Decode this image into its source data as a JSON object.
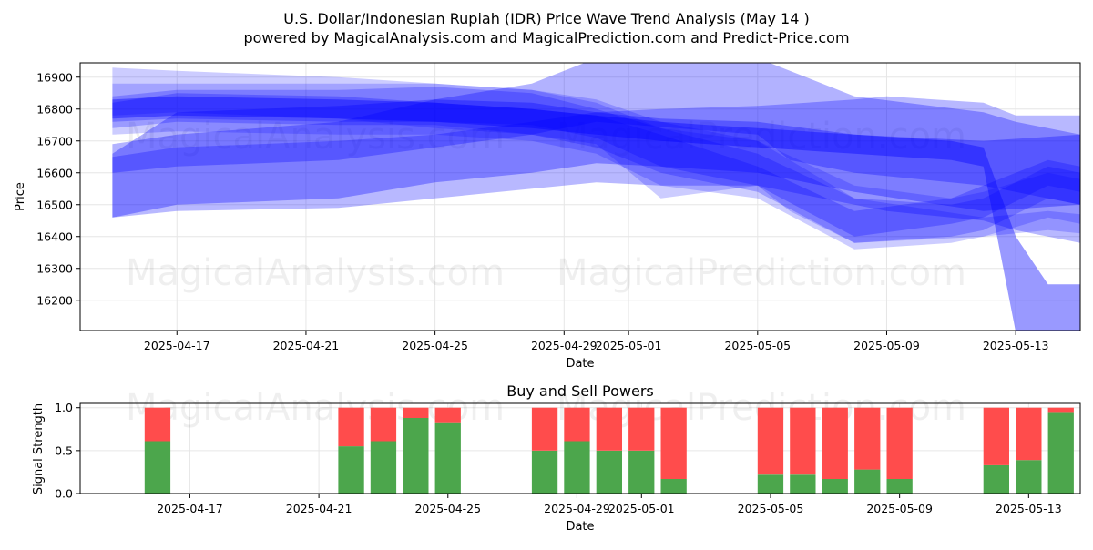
{
  "title_line1": "U.S. Dollar/Indonesian Rupiah (IDR) Price Wave Trend Analysis (May 14 )",
  "title_line2": "powered by MagicalAnalysis.com and MagicalPrediction.com and Predict-Price.com",
  "watermarks": [
    "MagicalAnalysis.com",
    "MagicalPrediction.com"
  ],
  "colors": {
    "wave": "#0000ff",
    "buy": "#4ca64c",
    "sell": "#ff4c4c",
    "grid": "#e6e6e6"
  },
  "chart_data": [
    {
      "type": "area",
      "xlabel": "Date",
      "ylabel": "Price",
      "xlim": [
        "2025-04-14",
        "2025-05-15"
      ],
      "ylim": [
        16105,
        16945
      ],
      "x_ticks": [
        "2025-04-17",
        "2025-04-21",
        "2025-04-25",
        "2025-04-29",
        "2025-05-01",
        "2025-05-05",
        "2025-05-09",
        "2025-05-13"
      ],
      "y_ticks": [
        16200,
        16300,
        16400,
        16500,
        16600,
        16700,
        16800,
        16900
      ],
      "grid": true,
      "bands": [
        {
          "x": [
            "2025-04-15",
            "2025-04-17",
            "2025-04-22",
            "2025-04-25",
            "2025-04-28",
            "2025-04-30",
            "2025-05-02",
            "2025-05-05",
            "2025-05-08",
            "2025-05-12",
            "2025-05-15"
          ],
          "upper": [
            16660,
            16790,
            16810,
            16830,
            16820,
            16790,
            16770,
            16760,
            16720,
            16700,
            16720
          ],
          "lower": [
            16460,
            16500,
            16520,
            16570,
            16600,
            16630,
            16620,
            16600,
            16540,
            16480,
            16500
          ]
        },
        {
          "x": [
            "2025-04-15",
            "2025-04-17",
            "2025-04-22",
            "2025-04-25",
            "2025-04-28",
            "2025-04-30",
            "2025-05-02",
            "2025-05-05",
            "2025-05-08",
            "2025-05-11",
            "2025-05-12",
            "2025-05-14",
            "2025-05-15"
          ],
          "upper": [
            16820,
            16850,
            16840,
            16820,
            16800,
            16780,
            16720,
            16620,
            16480,
            16520,
            16560,
            16640,
            16620
          ],
          "lower": [
            16760,
            16770,
            16760,
            16760,
            16750,
            16710,
            16620,
            16560,
            16400,
            16440,
            16460,
            16560,
            16540
          ]
        },
        {
          "x": [
            "2025-04-15",
            "2025-04-17",
            "2025-04-22",
            "2025-04-25",
            "2025-04-28",
            "2025-04-30",
            "2025-05-02",
            "2025-05-05",
            "2025-05-08",
            "2025-05-11",
            "2025-05-12",
            "2025-05-14",
            "2025-05-15"
          ],
          "upper": [
            16840,
            16860,
            16860,
            16870,
            16850,
            16800,
            16740,
            16660,
            16520,
            16500,
            16520,
            16620,
            16600
          ],
          "lower": [
            16740,
            16760,
            16750,
            16750,
            16720,
            16680,
            16600,
            16540,
            16380,
            16400,
            16420,
            16520,
            16500
          ]
        },
        {
          "x": [
            "2025-04-15",
            "2025-04-17",
            "2025-04-22",
            "2025-04-25",
            "2025-04-28",
            "2025-04-30",
            "2025-05-02",
            "2025-05-05",
            "2025-05-08",
            "2025-05-11",
            "2025-05-12",
            "2025-05-14",
            "2025-05-15"
          ],
          "upper": [
            16880,
            16880,
            16880,
            16880,
            16860,
            16830,
            16760,
            16700,
            16560,
            16520,
            16540,
            16600,
            16580
          ],
          "lower": [
            16720,
            16730,
            16720,
            16720,
            16700,
            16660,
            16560,
            16520,
            16360,
            16380,
            16400,
            16460,
            16440
          ]
        },
        {
          "x": [
            "2025-04-15",
            "2025-04-17",
            "2025-04-22",
            "2025-04-25",
            "2025-04-28",
            "2025-04-30",
            "2025-05-02",
            "2025-05-05",
            "2025-05-06",
            "2025-05-08",
            "2025-05-12",
            "2025-05-14",
            "2025-05-15"
          ],
          "upper": [
            16930,
            16920,
            16900,
            16880,
            16860,
            16820,
            16740,
            16700,
            16640,
            16520,
            16460,
            16480,
            16470
          ],
          "lower": [
            16780,
            16790,
            16770,
            16740,
            16720,
            16690,
            16520,
            16560,
            16480,
            16380,
            16400,
            16420,
            16410
          ]
        },
        {
          "x": [
            "2025-04-15",
            "2025-04-17",
            "2025-04-22",
            "2025-04-25",
            "2025-04-28",
            "2025-04-30",
            "2025-05-02",
            "2025-05-05",
            "2025-05-08",
            "2025-05-09",
            "2025-05-12",
            "2025-05-13",
            "2025-05-14",
            "2025-05-15"
          ],
          "upper": [
            16650,
            16680,
            16700,
            16720,
            16760,
            16790,
            16800,
            16810,
            16830,
            16840,
            16820,
            16780,
            16780,
            16780
          ],
          "lower": [
            16460,
            16480,
            16490,
            16520,
            16550,
            16570,
            16560,
            16560,
            16500,
            16480,
            16450,
            16420,
            16400,
            16380
          ]
        },
        {
          "x": [
            "2025-04-15",
            "2025-04-17",
            "2025-04-22",
            "2025-04-25",
            "2025-04-28",
            "2025-04-29",
            "2025-04-30",
            "2025-05-05",
            "2025-05-06",
            "2025-05-08",
            "2025-05-12",
            "2025-05-13",
            "2025-05-14",
            "2025-05-15"
          ],
          "upper": [
            16690,
            16720,
            16760,
            16830,
            16880,
            16920,
            16960,
            16960,
            16920,
            16840,
            16790,
            16760,
            16740,
            16720
          ],
          "lower": [
            16600,
            16620,
            16640,
            16680,
            16720,
            16740,
            16760,
            16720,
            16640,
            16600,
            16560,
            16540,
            16520,
            16500
          ]
        },
        {
          "x": [
            "2025-04-15",
            "2025-04-17",
            "2025-04-22",
            "2025-04-25",
            "2025-04-28",
            "2025-04-30",
            "2025-05-02",
            "2025-05-05",
            "2025-05-08",
            "2025-05-11",
            "2025-05-12",
            "2025-05-13",
            "2025-05-14",
            "2025-05-15"
          ],
          "upper": [
            16830,
            16840,
            16830,
            16820,
            16800,
            16780,
            16760,
            16740,
            16720,
            16700,
            16680,
            16400,
            16250,
            16250
          ],
          "lower": [
            16770,
            16780,
            16770,
            16760,
            16740,
            16720,
            16700,
            16680,
            16660,
            16640,
            16620,
            16100,
            16100,
            16100
          ]
        }
      ]
    },
    {
      "type": "bar",
      "title": "Buy and Sell Powers",
      "xlabel": "Date",
      "ylabel": "Signal Strength",
      "ylim": [
        0,
        1.05
      ],
      "x_ticks": [
        "2025-04-17",
        "2025-04-21",
        "2025-04-25",
        "2025-04-29",
        "2025-05-01",
        "2025-05-05",
        "2025-05-09",
        "2025-05-13"
      ],
      "y_ticks": [
        0.0,
        0.5,
        1.0
      ],
      "y_tick_labels": [
        "0.0",
        "0.5",
        "1.0"
      ],
      "grid": true,
      "stacked": true,
      "categories": [
        "2025-04-16",
        "2025-04-22",
        "2025-04-23",
        "2025-04-24",
        "2025-04-25",
        "2025-04-28",
        "2025-04-29",
        "2025-04-30",
        "2025-05-01",
        "2025-05-02",
        "2025-05-05",
        "2025-05-06",
        "2025-05-07",
        "2025-05-08",
        "2025-05-09",
        "2025-05-12",
        "2025-05-13",
        "2025-05-14"
      ],
      "series": [
        {
          "values": [
            0.61,
            0.55,
            0.61,
            0.88,
            0.83,
            0.5,
            0.61,
            0.5,
            0.5,
            0.17,
            0.22,
            0.22,
            0.17,
            0.28,
            0.17,
            0.33,
            0.39,
            0.94
          ]
        },
        {
          "values": [
            0.39,
            0.45,
            0.39,
            0.12,
            0.17,
            0.5,
            0.39,
            0.5,
            0.5,
            0.83,
            0.78,
            0.78,
            0.83,
            0.72,
            0.83,
            0.67,
            0.61,
            0.06
          ]
        }
      ]
    }
  ]
}
